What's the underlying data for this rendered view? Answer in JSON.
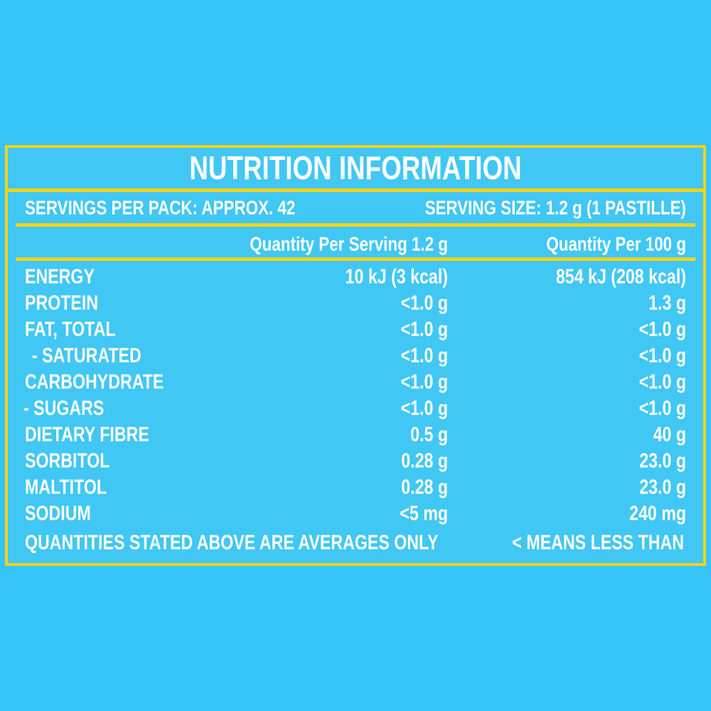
{
  "title": "NUTRITION INFORMATION",
  "servings_per_pack": "SERVINGS PER PACK: APPROX. 42",
  "serving_size": "SERVING SIZE: 1.2 g (1 PASTILLE)",
  "columns": {
    "per_serving": "Quantity Per Serving 1.2 g",
    "per_100g": "Quantity Per 100 g"
  },
  "rows": [
    {
      "label": "ENERGY",
      "per_serving": "10 kJ (3 kcal)",
      "per_100g": "854 kJ (208 kcal)"
    },
    {
      "label": "PROTEIN",
      "per_serving": "<1.0 g",
      "per_100g": "1.3 g"
    },
    {
      "label": "FAT, TOTAL",
      "per_serving": "<1.0 g",
      "per_100g": "<1.0 g"
    },
    {
      "label": "- SATURATED",
      "per_serving": "<1.0 g",
      "per_100g": "<1.0 g"
    },
    {
      "label": "CARBOHYDRATE",
      "per_serving": "<1.0 g",
      "per_100g": "<1.0 g"
    },
    {
      "label": "- SUGARS",
      "per_serving": "<1.0 g",
      "per_100g": "<1.0 g"
    },
    {
      "label": "DIETARY FIBRE",
      "per_serving": "0.5 g",
      "per_100g": "40 g"
    },
    {
      "label": "SORBITOL",
      "per_serving": "0.28 g",
      "per_100g": "23.0 g"
    },
    {
      "label": "MALTITOL",
      "per_serving": "0.28 g",
      "per_100g": "23.0 g"
    },
    {
      "label": "SODIUM",
      "per_serving": "<5 mg",
      "per_100g": "240 mg"
    }
  ],
  "footer": {
    "left": "QUANTITIES STATED ABOVE ARE AVERAGES ONLY",
    "right": "< MEANS LESS THAN"
  }
}
